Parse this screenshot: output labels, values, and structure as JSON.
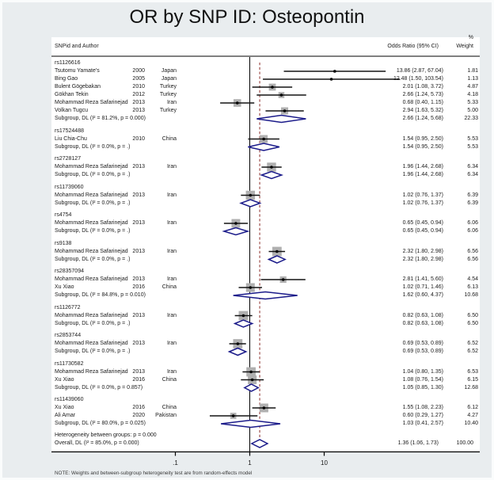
{
  "title": "OR by SNP ID: Osteopontin",
  "columns": {
    "left": "SNPid and Author",
    "pct": "%",
    "or": "Odds Ratio (95% CI)",
    "weight": "Weight"
  },
  "heterogeneity": "Heterogeneity between groups: p = 0.000",
  "overall": {
    "label": "Overall, DL (I² = 85.0%, p = 0.000)",
    "or": 1.36,
    "lo": 1.06,
    "hi": 1.73,
    "or_text": "1.36 (1.06, 1.73)",
    "weight": "100.00"
  },
  "note": "NOTE: Weights and between-subgroup heterogeneity test are from random-effects model",
  "colors": {
    "diamond": "#1b1b8a",
    "overall_line": "#943c3a",
    "weight_box": "#b0b0b0",
    "ci_line": "#141414"
  },
  "chart_data": {
    "type": "forest",
    "effect_label": "Odds Ratio",
    "x_scale": "log10",
    "null_value": 1,
    "x_ticks": [
      {
        "label": ".1",
        "value": 0.1
      },
      {
        "label": "1",
        "value": 1
      },
      {
        "label": "10",
        "value": 10
      }
    ],
    "groups": [
      {
        "snp": "rs1126616",
        "studies": [
          {
            "author": "Tsutomu Yamate's",
            "year": "2000",
            "country": "Japan",
            "or": 13.86,
            "lo": 2.87,
            "hi": 67.04,
            "or_text": "13.86 (2.87, 67.04)",
            "weight": "1.81"
          },
          {
            "author": "Bing Gao",
            "year": "2005",
            "country": "Japan",
            "or": 12.48,
            "lo": 1.5,
            "hi": 103.54,
            "or_text": "12.48 (1.50, 103.54)",
            "weight": "1.13"
          },
          {
            "author": "Bulent Gögebakan",
            "year": "2010",
            "country": "Turkey",
            "or": 2.01,
            "lo": 1.08,
            "hi": 3.72,
            "or_text": "2.01 (1.08, 3.72)",
            "weight": "4.87"
          },
          {
            "author": "Gökhan Tekin",
            "year": "2012",
            "country": "Turkey",
            "or": 2.66,
            "lo": 1.24,
            "hi": 5.73,
            "or_text": "2.66 (1.24, 5.73)",
            "weight": "4.18"
          },
          {
            "author": "Mohammad Reza Safarinejad",
            "year": "2013",
            "country": "Iran",
            "or": 0.68,
            "lo": 0.4,
            "hi": 1.15,
            "or_text": "0.68 (0.40, 1.15)",
            "weight": "5.33"
          },
          {
            "author": "Volkan Tugcu",
            "year": "2013",
            "country": "Turkey",
            "or": 2.94,
            "lo": 1.63,
            "hi": 5.32,
            "or_text": "2.94 (1.63, 5.32)",
            "weight": "5.00"
          }
        ],
        "subgroup": {
          "label": "Subgroup, DL (I² = 81.2%, p = 0.000)",
          "or": 2.66,
          "lo": 1.24,
          "hi": 5.68,
          "or_text": "2.66 (1.24, 5.68)",
          "weight": "22.33"
        }
      },
      {
        "snp": "rs17524488",
        "studies": [
          {
            "author": "Liu Chia-Chu",
            "year": "2010",
            "country": "China",
            "or": 1.54,
            "lo": 0.95,
            "hi": 2.5,
            "or_text": "1.54 (0.95, 2.50)",
            "weight": "5.53"
          }
        ],
        "subgroup": {
          "label": "Subgroup, DL (I² = 0.0%, p = .)",
          "or": 1.54,
          "lo": 0.95,
          "hi": 2.5,
          "or_text": "1.54 (0.95, 2.50)",
          "weight": "5.53"
        }
      },
      {
        "snp": "rs2728127",
        "studies": [
          {
            "author": "Mohammad Reza Safarinejad",
            "year": "2013",
            "country": "Iran",
            "or": 1.96,
            "lo": 1.44,
            "hi": 2.68,
            "or_text": "1.96 (1.44, 2.68)",
            "weight": "6.34"
          }
        ],
        "subgroup": {
          "label": "Subgroup, DL (I² = 0.0%, p = .)",
          "or": 1.96,
          "lo": 1.44,
          "hi": 2.68,
          "or_text": "1.96 (1.44, 2.68)",
          "weight": "6.34"
        }
      },
      {
        "snp": "rs11739060",
        "studies": [
          {
            "author": "Mohammad Reza Safarinejad",
            "year": "2013",
            "country": "Iran",
            "or": 1.02,
            "lo": 0.76,
            "hi": 1.37,
            "or_text": "1.02 (0.76, 1.37)",
            "weight": "6.39"
          }
        ],
        "subgroup": {
          "label": "Subgroup, DL (I² = 0.0%, p = .)",
          "or": 1.02,
          "lo": 0.76,
          "hi": 1.37,
          "or_text": "1.02 (0.76, 1.37)",
          "weight": "6.39"
        }
      },
      {
        "snp": "rs4754",
        "studies": [
          {
            "author": "Mohammad Reza Safarinejad",
            "year": "2013",
            "country": "Iran",
            "or": 0.65,
            "lo": 0.45,
            "hi": 0.94,
            "or_text": "0.65 (0.45, 0.94)",
            "weight": "6.06"
          }
        ],
        "subgroup": {
          "label": "Subgroup, DL (I² = 0.0%, p = .)",
          "or": 0.65,
          "lo": 0.45,
          "hi": 0.94,
          "or_text": "0.65 (0.45, 0.94)",
          "weight": "6.06"
        }
      },
      {
        "snp": "rs9138",
        "studies": [
          {
            "author": "Mohammad Reza Safarinejad",
            "year": "2013",
            "country": "Iran",
            "or": 2.32,
            "lo": 1.8,
            "hi": 2.98,
            "or_text": "2.32 (1.80, 2.98)",
            "weight": "6.56"
          }
        ],
        "subgroup": {
          "label": "Subgroup, DL (I² = 0.0%, p = .)",
          "or": 2.32,
          "lo": 1.8,
          "hi": 2.98,
          "or_text": "2.32 (1.80, 2.98)",
          "weight": "6.56"
        }
      },
      {
        "snp": "rs28357094",
        "studies": [
          {
            "author": "Mohammad Reza Safarinejad",
            "year": "2013",
            "country": "Iran",
            "or": 2.81,
            "lo": 1.41,
            "hi": 5.6,
            "or_text": "2.81 (1.41, 5.60)",
            "weight": "4.54"
          },
          {
            "author": "Xu Xiao",
            "year": "2016",
            "country": "China",
            "or": 1.02,
            "lo": 0.71,
            "hi": 1.46,
            "or_text": "1.02 (0.71, 1.46)",
            "weight": "6.13"
          }
        ],
        "subgroup": {
          "label": "Subgroup, DL (I² = 84.8%, p = 0.010)",
          "or": 1.62,
          "lo": 0.6,
          "hi": 4.37,
          "or_text": "1.62 (0.60, 4.37)",
          "weight": "10.68"
        }
      },
      {
        "snp": "rs1126772",
        "studies": [
          {
            "author": "Mohammad Reza Safarinejad",
            "year": "2013",
            "country": "Iran",
            "or": 0.82,
            "lo": 0.63,
            "hi": 1.08,
            "or_text": "0.82 (0.63, 1.08)",
            "weight": "6.50"
          }
        ],
        "subgroup": {
          "label": "Subgroup, DL (I² = 0.0%, p = .)",
          "or": 0.82,
          "lo": 0.63,
          "hi": 1.08,
          "or_text": "0.82 (0.63, 1.08)",
          "weight": "6.50"
        }
      },
      {
        "snp": "rs2853744",
        "studies": [
          {
            "author": "Mohammad Reza Safarinejad",
            "year": "2013",
            "country": "Iran",
            "or": 0.69,
            "lo": 0.53,
            "hi": 0.89,
            "or_text": "0.69 (0.53, 0.89)",
            "weight": "6.52"
          }
        ],
        "subgroup": {
          "label": "Subgroup, DL (I² = 0.0%, p = .)",
          "or": 0.69,
          "lo": 0.53,
          "hi": 0.89,
          "or_text": "0.69 (0.53, 0.89)",
          "weight": "6.52"
        }
      },
      {
        "snp": "rs11730582",
        "studies": [
          {
            "author": "Mohammad Reza Safarinejad",
            "year": "2013",
            "country": "Iran",
            "or": 1.04,
            "lo": 0.8,
            "hi": 1.35,
            "or_text": "1.04 (0.80, 1.35)",
            "weight": "6.53"
          },
          {
            "author": "Xu Xiao",
            "year": "2016",
            "country": "China",
            "or": 1.08,
            "lo": 0.76,
            "hi": 1.54,
            "or_text": "1.08 (0.76, 1.54)",
            "weight": "6.15"
          }
        ],
        "subgroup": {
          "label": "Subgroup, DL (I² = 0.0%, p = 0.857)",
          "or": 1.05,
          "lo": 0.85,
          "hi": 1.3,
          "or_text": "1.05 (0.85, 1.30)",
          "weight": "12.68"
        }
      },
      {
        "snp": "rs11439060",
        "studies": [
          {
            "author": "Xu Xiao",
            "year": "2016",
            "country": "China",
            "or": 1.55,
            "lo": 1.08,
            "hi": 2.23,
            "or_text": "1.55 (1.08, 2.23)",
            "weight": "6.12"
          },
          {
            "author": "Ali Amar",
            "year": "2020",
            "country": "Pakistan",
            "or": 0.6,
            "lo": 0.29,
            "hi": 1.27,
            "or_text": "0.60 (0.29, 1.27)",
            "weight": "4.27"
          }
        ],
        "subgroup": {
          "label": "Subgroup, DL (I² = 80.0%, p = 0.025)",
          "or": 1.03,
          "lo": 0.41,
          "hi": 2.57,
          "or_text": "1.03 (0.41, 2.57)",
          "weight": "10.40"
        }
      }
    ]
  }
}
